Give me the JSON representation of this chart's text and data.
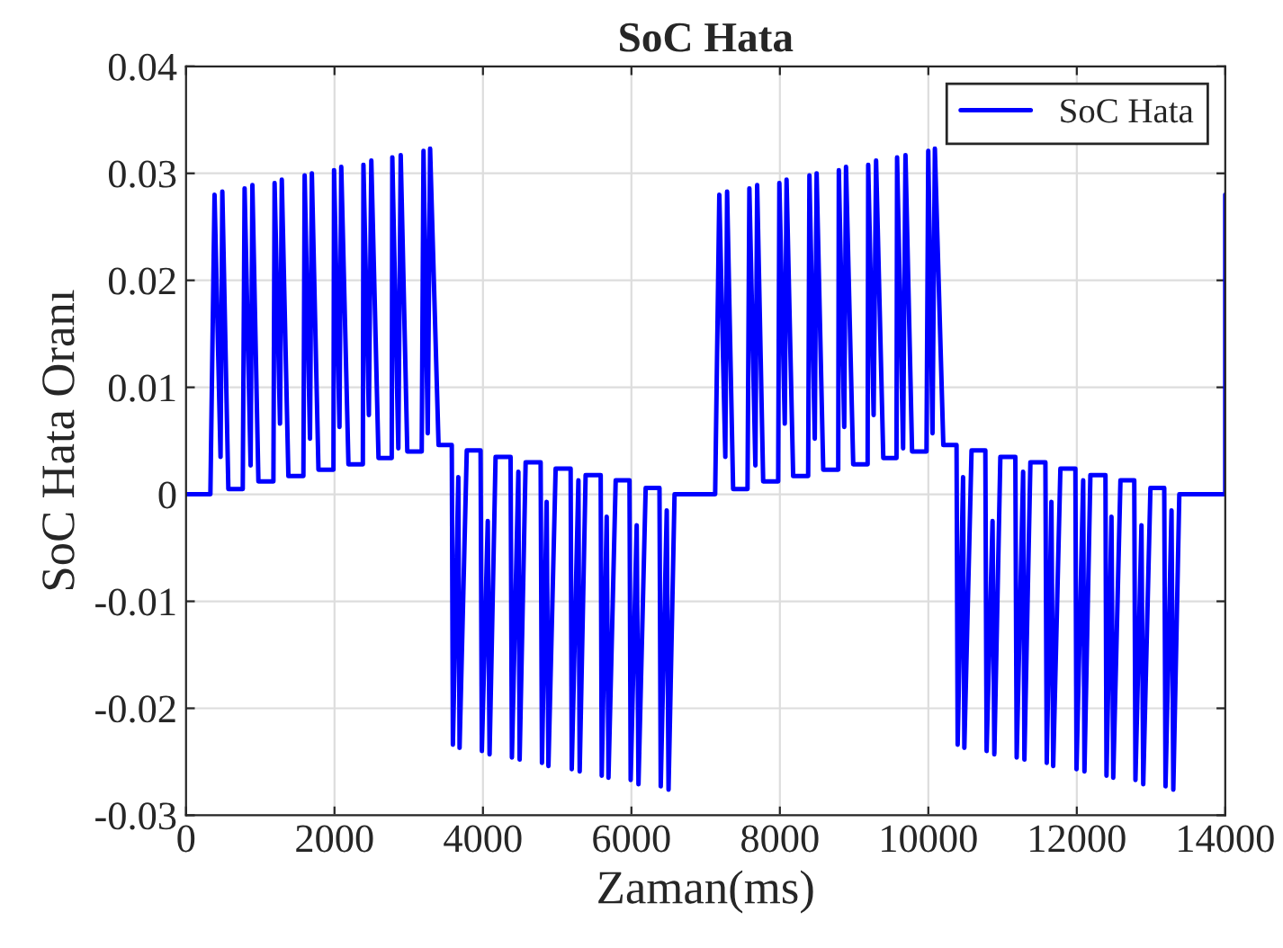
{
  "chart_data": {
    "type": "line",
    "title": "SoC Hata",
    "xlabel": "Zaman(ms)",
    "ylabel": "SoC Hata Oranı",
    "series": [
      {
        "name": "SoC Hata",
        "color": "#0000ff",
        "x": [
          0,
          328,
          384,
          465,
          489,
          570,
          764,
          789,
          870,
          894,
          975,
          1177,
          1193,
          1266,
          1290,
          1379,
          1581,
          1598,
          1670,
          1695,
          1784,
          1986,
          1994,
          2067,
          2091,
          2188,
          2382,
          2390,
          2463,
          2496,
          2593,
          2771,
          2779,
          2860,
          2892,
          2981,
          3175,
          3199,
          3256,
          3288,
          3402,
          3580,
          3595,
          3668,
          3685,
          3782,
          3968,
          3985,
          4065,
          4089,
          4170,
          4372,
          4390,
          4477,
          4494,
          4575,
          4777,
          4795,
          4858,
          4882,
          4979,
          5181,
          5196,
          5286,
          5303,
          5383,
          5586,
          5600,
          5667,
          5691,
          5788,
          5974,
          5990,
          6071,
          6095,
          6192,
          6378,
          6395,
          6476,
          6500,
          6581,
          7128,
          7184,
          7265,
          7289,
          7370,
          7564,
          7589,
          7670,
          7694,
          7775,
          7977,
          7993,
          8066,
          8090,
          8179,
          8381,
          8398,
          8470,
          8495,
          8584,
          8786,
          8794,
          8867,
          8891,
          8988,
          9182,
          9190,
          9263,
          9296,
          9393,
          9571,
          9579,
          9660,
          9692,
          9781,
          9975,
          9999,
          10056,
          10088,
          10202,
          10380,
          10395,
          10468,
          10485,
          10582,
          10768,
          10785,
          10865,
          10889,
          10970,
          11172,
          11190,
          11277,
          11294,
          11375,
          11577,
          11595,
          11658,
          11682,
          11779,
          11981,
          11996,
          12086,
          12103,
          12183,
          12386,
          12400,
          12467,
          12491,
          12588,
          12774,
          12790,
          12871,
          12895,
          12992,
          13178,
          13195,
          13276,
          13300,
          13381,
          14000,
          14000
        ],
        "values": [
          0,
          0,
          0.028,
          0.0035,
          0.0283,
          0.0005,
          0.0005,
          0.0286,
          0.0027,
          0.0289,
          0.0012,
          0.0012,
          0.0291,
          0.0066,
          0.0294,
          0.0017,
          0.0017,
          0.0298,
          0.0052,
          0.03,
          0.0023,
          0.0023,
          0.0303,
          0.0063,
          0.0306,
          0.0028,
          0.0028,
          0.0308,
          0.0074,
          0.0312,
          0.0034,
          0.0034,
          0.0315,
          0.0043,
          0.0317,
          0.004,
          0.004,
          0.0321,
          0.0057,
          0.0323,
          0.0046,
          0.0046,
          -0.0234,
          0.0016,
          -0.0237,
          0.0041,
          0.0041,
          -0.024,
          -0.0025,
          -0.0243,
          0.0035,
          0.0035,
          -0.0246,
          0.0021,
          -0.0248,
          0.003,
          0.003,
          -0.0251,
          -0.0007,
          -0.0254,
          0.0024,
          0.0024,
          -0.0257,
          0.0013,
          -0.0259,
          0.0018,
          0.0018,
          -0.0263,
          -0.0021,
          -0.0265,
          0.0013,
          0.0013,
          -0.0267,
          -0.0029,
          -0.0271,
          0.0006,
          0.0006,
          -0.0273,
          -0.0015,
          -0.0276,
          0,
          0,
          0.028,
          0.0035,
          0.0283,
          0.0005,
          0.0005,
          0.0286,
          0.0027,
          0.0289,
          0.0012,
          0.0012,
          0.0291,
          0.0066,
          0.0294,
          0.0017,
          0.0017,
          0.0298,
          0.0052,
          0.03,
          0.0023,
          0.0023,
          0.0303,
          0.0063,
          0.0306,
          0.0028,
          0.0028,
          0.0308,
          0.0074,
          0.0312,
          0.0034,
          0.0034,
          0.0315,
          0.0043,
          0.0317,
          0.004,
          0.004,
          0.0321,
          0.0057,
          0.0323,
          0.0046,
          0.0046,
          -0.0234,
          0.0016,
          -0.0237,
          0.0041,
          0.0041,
          -0.024,
          -0.0025,
          -0.0243,
          0.0035,
          0.0035,
          -0.0246,
          0.0021,
          -0.0248,
          0.003,
          0.003,
          -0.0251,
          -0.0007,
          -0.0254,
          0.0024,
          0.0024,
          -0.0257,
          0.0013,
          -0.0259,
          0.0018,
          0.0018,
          -0.0263,
          -0.0021,
          -0.0265,
          0.0013,
          0.0013,
          -0.0267,
          -0.0029,
          -0.0271,
          0.0006,
          0.0006,
          -0.0273,
          -0.0015,
          -0.0276,
          0,
          0,
          0.028
        ]
      }
    ],
    "xlim": [
      0,
      14000
    ],
    "xticks": [
      0,
      2000,
      4000,
      6000,
      8000,
      10000,
      12000,
      14000
    ],
    "ylim": [
      -0.03,
      0.04
    ],
    "yticks": [
      -0.03,
      -0.02,
      -0.01,
      0,
      0.01,
      0.02,
      0.03,
      0.04
    ],
    "grid": true,
    "legend": "top right",
    "marker": "none",
    "line_style": "solid"
  }
}
